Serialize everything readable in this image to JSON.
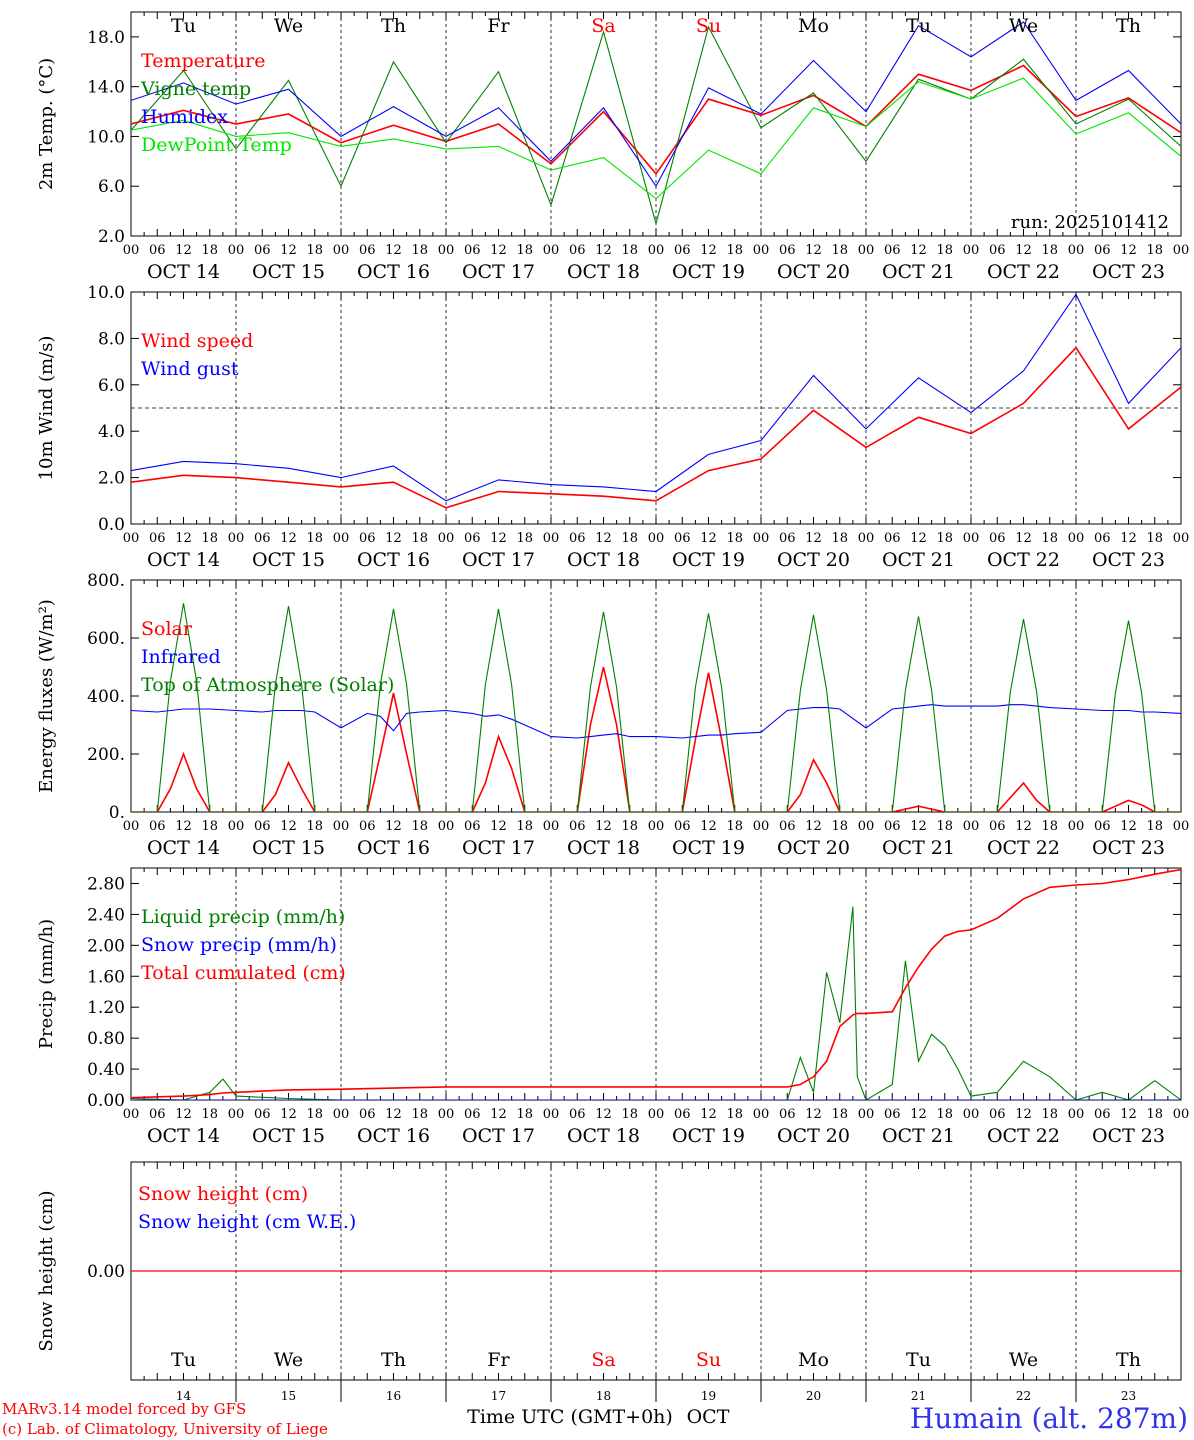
{
  "day_abbrevs": [
    "Tu",
    "We",
    "Th",
    "Fr",
    "Sa",
    "Su",
    "Mo",
    "Tu",
    "We",
    "Th"
  ],
  "weekend_flags": [
    false,
    false,
    false,
    false,
    true,
    true,
    false,
    false,
    false,
    false
  ],
  "hour_ticks": [
    "00",
    "06",
    "12",
    "18"
  ],
  "date_labels": [
    "OCT 14",
    "OCT 15",
    "OCT 16",
    "OCT 17",
    "OCT 18",
    "OCT 19",
    "OCT 20",
    "OCT 21",
    "OCT 22",
    "OCT 23"
  ],
  "bottom_day_numbers": [
    "14",
    "15",
    "16",
    "17",
    "18",
    "19",
    "20",
    "21",
    "22",
    "23"
  ],
  "xlabel": "Time UTC (GMT+0h)",
  "xlabel_month": "OCT",
  "footer": {
    "model_line": "MARv3.14 model forced by GFS",
    "copyright_line": "(c) Lab. of Climatology, University of Liege",
    "station": "Humain (alt. 287m)"
  },
  "colors": {
    "red": "#ff0000",
    "green": "#008000",
    "blue": "#0000ff",
    "lightgreen": "#00e600",
    "station": "#3333ee"
  },
  "chart_data": [
    {
      "type": "line",
      "ylabel": "2m Temp. (°C)",
      "ylim": [
        2.0,
        20.0
      ],
      "yticks": [
        "2.0",
        "6.0",
        "10.0",
        "14.0",
        "18.0"
      ],
      "annotation": "run: 2025101412",
      "x_hours": [
        0,
        12,
        24,
        36,
        48,
        60,
        72,
        84,
        96,
        108,
        120,
        132,
        144,
        156,
        168,
        180,
        192,
        204,
        216,
        228,
        240
      ],
      "series": [
        {
          "name": "Temperature",
          "color": "red",
          "values": [
            11.0,
            12.1,
            11.0,
            11.8,
            9.5,
            10.9,
            9.6,
            11.0,
            7.8,
            12.0,
            7.0,
            13.0,
            11.7,
            13.3,
            10.8,
            15.0,
            13.7,
            15.7,
            11.6,
            13.1,
            10.3
          ]
        },
        {
          "name": "Vigne temp",
          "color": "green",
          "values": [
            10.5,
            15.3,
            9.0,
            14.5,
            6.0,
            16.0,
            9.5,
            15.2,
            4.5,
            18.4,
            3.0,
            18.8,
            10.7,
            13.5,
            8.0,
            14.6,
            13.0,
            16.2,
            11.0,
            13.0,
            9.2
          ]
        },
        {
          "name": "Humidex",
          "color": "blue",
          "values": [
            12.9,
            14.3,
            12.6,
            13.8,
            10.0,
            12.4,
            10.0,
            12.3,
            8.0,
            12.3,
            6.0,
            13.9,
            11.8,
            16.1,
            12.0,
            18.9,
            16.4,
            19.2,
            12.9,
            15.3,
            11.0
          ]
        },
        {
          "name": "DewPoint Temp",
          "color": "lightgreen",
          "values": [
            10.5,
            11.3,
            10.0,
            10.3,
            9.2,
            9.8,
            9.0,
            9.2,
            7.3,
            8.3,
            5.0,
            8.9,
            7.0,
            12.3,
            10.8,
            14.4,
            13.0,
            14.7,
            10.2,
            11.9,
            8.4
          ]
        }
      ]
    },
    {
      "type": "line",
      "ylabel": "10m Wind (m/s)",
      "ylim": [
        0.0,
        10.0
      ],
      "yticks": [
        "0.0",
        "2.0",
        "4.0",
        "6.0",
        "8.0",
        "10.0"
      ],
      "reference_line": 5.0,
      "x_hours": [
        0,
        12,
        24,
        36,
        48,
        60,
        72,
        84,
        96,
        108,
        120,
        132,
        144,
        156,
        168,
        180,
        192,
        204,
        216,
        228,
        240
      ],
      "series": [
        {
          "name": "Wind speed",
          "color": "red",
          "values": [
            1.8,
            2.1,
            2.0,
            1.8,
            1.6,
            1.8,
            0.7,
            1.4,
            1.3,
            1.2,
            1.0,
            2.3,
            2.8,
            4.9,
            3.3,
            4.6,
            3.9,
            5.2,
            7.6,
            4.1,
            5.9
          ]
        },
        {
          "name": "Wind gust",
          "color": "blue",
          "values": [
            2.3,
            2.7,
            2.6,
            2.4,
            2.0,
            2.5,
            1.0,
            1.9,
            1.7,
            1.6,
            1.4,
            3.0,
            3.6,
            6.4,
            4.1,
            6.3,
            4.8,
            6.6,
            9.9,
            5.2,
            7.6
          ]
        }
      ]
    },
    {
      "type": "line",
      "ylabel": "Energy fluxes (W/m²)",
      "ylim": [
        0,
        800
      ],
      "yticks": [
        "0.",
        "200.",
        "400.",
        "600.",
        "800."
      ],
      "x_hours": [
        0,
        6,
        9,
        12,
        15,
        18,
        24,
        30,
        33,
        36,
        39,
        42,
        48,
        54,
        57,
        60,
        63,
        66,
        72,
        78,
        81,
        84,
        87,
        90,
        96,
        102,
        105,
        108,
        111,
        114,
        120,
        126,
        129,
        132,
        135,
        138,
        144,
        150,
        153,
        156,
        159,
        162,
        168,
        174,
        177,
        180,
        183,
        186,
        192,
        198,
        201,
        204,
        207,
        210,
        216,
        222,
        225,
        228,
        231,
        234,
        240
      ],
      "series": [
        {
          "name": "Solar",
          "color": "red",
          "values": [
            0,
            0,
            80,
            200,
            80,
            0,
            0,
            0,
            60,
            170,
            80,
            0,
            0,
            0,
            200,
            410,
            200,
            0,
            0,
            0,
            100,
            260,
            150,
            0,
            0,
            0,
            300,
            500,
            300,
            0,
            0,
            0,
            250,
            480,
            250,
            0,
            0,
            0,
            60,
            180,
            100,
            0,
            0,
            0,
            10,
            20,
            10,
            0,
            0,
            0,
            50,
            100,
            40,
            0,
            0,
            0,
            20,
            40,
            25,
            0,
            0
          ]
        },
        {
          "name": "Infrared",
          "color": "blue",
          "values": [
            350,
            345,
            350,
            355,
            355,
            355,
            350,
            345,
            350,
            350,
            350,
            345,
            290,
            340,
            330,
            280,
            340,
            345,
            350,
            340,
            330,
            335,
            320,
            300,
            260,
            255,
            260,
            265,
            270,
            260,
            260,
            255,
            260,
            265,
            265,
            270,
            275,
            350,
            355,
            360,
            360,
            355,
            290,
            355,
            360,
            365,
            370,
            365,
            365,
            365,
            370,
            370,
            365,
            360,
            355,
            350,
            350,
            350,
            345,
            345,
            340
          ]
        },
        {
          "name": "Top of Atmosphere (Solar)",
          "color": "green",
          "values": [
            0,
            0,
            450,
            720,
            450,
            0,
            0,
            0,
            440,
            710,
            440,
            0,
            0,
            0,
            440,
            700,
            440,
            0,
            0,
            0,
            440,
            700,
            440,
            0,
            0,
            0,
            430,
            690,
            430,
            0,
            0,
            0,
            430,
            685,
            430,
            0,
            0,
            0,
            420,
            680,
            420,
            0,
            0,
            0,
            420,
            675,
            420,
            0,
            0,
            0,
            415,
            665,
            415,
            0,
            0,
            0,
            410,
            660,
            410,
            0,
            0
          ]
        }
      ]
    },
    {
      "type": "line",
      "ylabel": "Precip (mm/h)",
      "ylim": [
        0.0,
        3.0
      ],
      "yticks": [
        "0.00",
        "0.40",
        "0.80",
        "1.20",
        "1.60",
        "2.00",
        "2.40",
        "2.80"
      ],
      "x_hours": [
        0,
        12,
        18,
        21,
        24,
        36,
        48,
        72,
        120,
        150,
        153,
        156,
        159,
        162,
        165,
        166,
        168,
        174,
        177,
        180,
        183,
        186,
        189,
        192,
        198,
        204,
        210,
        216,
        222,
        228,
        234,
        240
      ],
      "series": [
        {
          "name": "Liquid precip (mm/h)",
          "color": "green",
          "values": [
            0.02,
            0.0,
            0.1,
            0.27,
            0.05,
            0.02,
            0.0,
            0.0,
            0.0,
            0.0,
            0.55,
            0.1,
            1.65,
            1.0,
            2.5,
            0.3,
            0.0,
            0.2,
            1.8,
            0.5,
            0.85,
            0.7,
            0.4,
            0.05,
            0.1,
            0.5,
            0.3,
            0.0,
            0.1,
            0.0,
            0.25,
            0.0
          ]
        },
        {
          "name": "Snow precip (mm/h)",
          "color": "blue",
          "values": [
            0,
            0,
            0,
            0,
            0,
            0,
            0,
            0,
            0,
            0,
            0,
            0,
            0,
            0,
            0,
            0,
            0,
            0,
            0,
            0,
            0,
            0,
            0,
            0,
            0,
            0,
            0,
            0,
            0,
            0,
            0,
            0
          ]
        },
        {
          "name": "Total cumulated (cm)",
          "color": "red",
          "values": [
            0.03,
            0.05,
            0.07,
            0.09,
            0.1,
            0.13,
            0.14,
            0.17,
            0.17,
            0.17,
            0.2,
            0.3,
            0.5,
            0.95,
            1.1,
            1.12,
            1.12,
            1.14,
            1.45,
            1.72,
            1.95,
            2.12,
            2.18,
            2.2,
            2.35,
            2.6,
            2.75,
            2.78,
            2.8,
            2.85,
            2.92,
            2.98
          ]
        }
      ]
    },
    {
      "type": "line",
      "ylabel": "Snow height (cm)",
      "ylim": [
        -1.0,
        1.0
      ],
      "yticks": [
        "0.00"
      ],
      "x_hours": [
        0,
        240
      ],
      "series": [
        {
          "name": "Snow height (cm)",
          "color": "red",
          "values": [
            0.0,
            0.0
          ]
        },
        {
          "name": "Snow height (cm W.E.)",
          "color": "blue",
          "values": [
            0.0,
            0.0
          ]
        }
      ]
    }
  ]
}
